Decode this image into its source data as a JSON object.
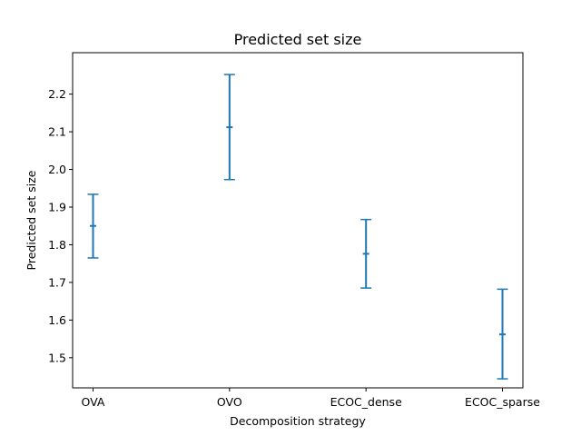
{
  "chart_data": {
    "type": "errorbar",
    "title": "Predicted set size",
    "xlabel": "Decomposition strategy",
    "ylabel": "Predicted set size",
    "categories": [
      "OVA",
      "OVO",
      "ECOC_dense",
      "ECOC_sparse"
    ],
    "series": [
      {
        "mean": [
          1.85,
          2.112,
          1.776,
          1.562
        ],
        "lower": [
          1.765,
          1.973,
          1.685,
          1.444
        ],
        "upper": [
          1.934,
          2.252,
          1.867,
          1.682
        ]
      }
    ],
    "ylim": [
      1.42,
      2.31
    ],
    "yticks": [
      "1.5",
      "1.6",
      "1.7",
      "1.8",
      "1.9",
      "2.0",
      "2.1",
      "2.2"
    ],
    "grid": false,
    "color": "#1f77b4"
  }
}
